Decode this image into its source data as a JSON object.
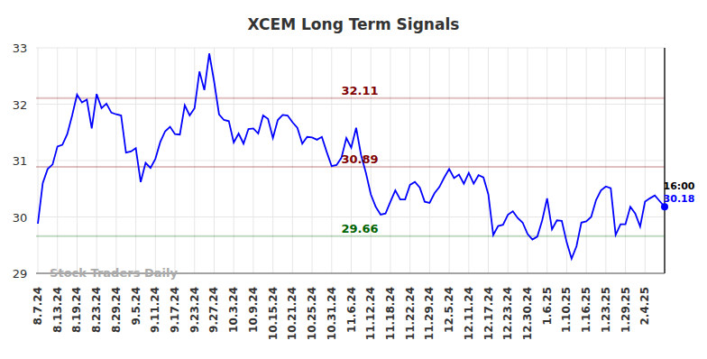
{
  "chart_data": {
    "type": "line",
    "title": "XCEM Long Term Signals",
    "categories": [
      "8.7.24",
      null,
      null,
      null,
      "8.13.24",
      null,
      null,
      null,
      "8.19.24",
      null,
      null,
      null,
      "8.23.24",
      null,
      null,
      null,
      "8.29.24",
      null,
      null,
      null,
      "9.5.24",
      null,
      null,
      null,
      "9.11.24",
      null,
      null,
      null,
      "9.17.24",
      null,
      null,
      null,
      "9.23.24",
      null,
      null,
      null,
      "9.27.24",
      null,
      null,
      null,
      "10.3.24",
      null,
      null,
      null,
      "10.9.24",
      null,
      null,
      null,
      "10.15.24",
      null,
      null,
      null,
      "10.21.24",
      null,
      null,
      null,
      "10.25.24",
      null,
      null,
      null,
      "10.31.24",
      null,
      null,
      null,
      "11.6.24",
      null,
      null,
      null,
      "11.12.24",
      null,
      null,
      null,
      "11.18.24",
      null,
      null,
      null,
      "11.22.24",
      null,
      null,
      null,
      "11.29.24",
      null,
      null,
      null,
      "12.5.24",
      null,
      null,
      null,
      "12.11.24",
      null,
      null,
      null,
      "12.17.24",
      null,
      null,
      null,
      "12.23.24",
      null,
      null,
      null,
      "12.30.24",
      null,
      null,
      null,
      "1.6.25",
      null,
      null,
      null,
      "1.10.25",
      null,
      null,
      null,
      "1.16.25",
      null,
      null,
      null,
      "1.23.25",
      null,
      null,
      null,
      "1.29.25",
      null,
      null,
      null,
      "2.4.25",
      null,
      null,
      null,
      null
    ],
    "series": [
      {
        "name": "XCEM",
        "color": "#0000ff",
        "values": [
          29.88,
          30.6,
          30.85,
          30.93,
          31.25,
          31.28,
          31.47,
          31.8,
          32.17,
          32.03,
          32.08,
          31.57,
          32.18,
          31.93,
          32.01,
          31.85,
          31.82,
          31.8,
          31.14,
          31.16,
          31.22,
          30.62,
          30.96,
          30.87,
          31.03,
          31.33,
          31.52,
          31.6,
          31.47,
          31.46,
          31.98,
          31.8,
          31.93,
          32.58,
          32.25,
          32.9,
          32.4,
          31.82,
          31.72,
          31.7,
          31.32,
          31.48,
          31.3,
          31.56,
          31.57,
          31.48,
          31.8,
          31.74,
          31.4,
          31.72,
          31.81,
          31.8,
          31.68,
          31.58,
          31.3,
          31.42,
          31.41,
          31.37,
          31.42,
          31.15,
          30.9,
          30.92,
          31.05,
          31.4,
          31.23,
          31.58,
          31.1,
          30.78,
          30.4,
          30.18,
          30.04,
          30.06,
          30.27,
          30.47,
          30.31,
          30.31,
          30.57,
          30.62,
          30.52,
          30.27,
          30.25,
          30.42,
          30.53,
          30.7,
          30.85,
          30.69,
          30.75,
          30.59,
          30.78,
          30.59,
          30.74,
          30.7,
          30.4,
          29.68,
          29.84,
          29.86,
          30.04,
          30.1,
          29.98,
          29.9,
          29.7,
          29.6,
          29.65,
          29.94,
          30.33,
          29.78,
          29.94,
          29.93,
          29.55,
          29.26,
          29.48,
          29.9,
          29.92,
          30.0,
          30.3,
          30.47,
          30.54,
          30.51,
          29.68,
          29.87,
          29.87,
          30.18,
          30.06,
          29.83,
          30.27,
          30.33,
          30.38,
          30.28,
          30.18
        ]
      }
    ],
    "ylim": [
      29,
      33
    ],
    "yticks": [
      29,
      30,
      31,
      32,
      33
    ],
    "grid": true,
    "annotations": [
      {
        "label": "32.11",
        "value": 32.11,
        "color": "#800000"
      },
      {
        "label": "30.89",
        "value": 30.89,
        "color": "#800000"
      },
      {
        "label": "29.66",
        "value": 29.66,
        "color": "#006400"
      }
    ],
    "last_label": {
      "time": "16:00",
      "value": 30.18
    },
    "watermark": "Stock Traders Daily"
  }
}
